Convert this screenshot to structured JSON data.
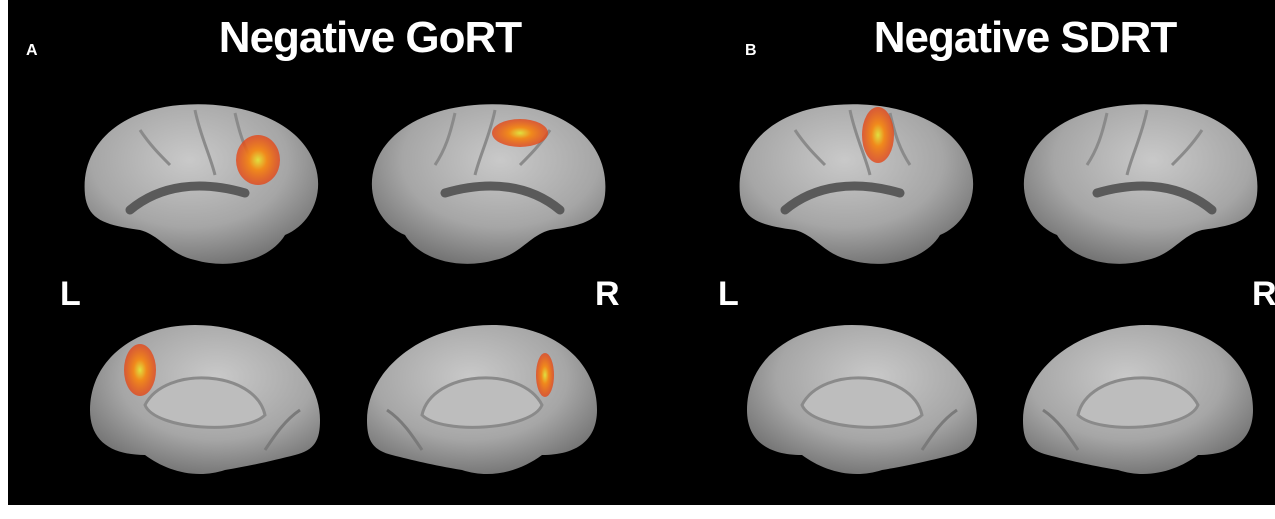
{
  "panels": [
    {
      "label": "A",
      "title": "Negative GoRT",
      "left": "L",
      "right": "R"
    },
    {
      "label": "B",
      "title": "Negative SDRT",
      "left": "L",
      "right": "R"
    }
  ]
}
